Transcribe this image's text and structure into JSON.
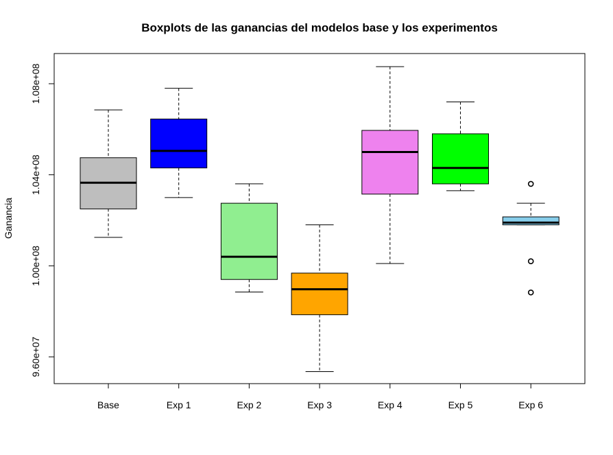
{
  "chart_data": {
    "type": "boxplot",
    "title": "Boxplots de las ganancias del modelos base y los experimentos",
    "xlabel": "",
    "ylabel": "Ganancia",
    "ylim": [
      95300000,
      108900000
    ],
    "yticks": [
      96000000,
      100000000,
      104000000,
      108000000
    ],
    "ytick_labels": [
      "9.60e+07",
      "1.00e+08",
      "1.04e+08",
      "1.08e+08"
    ],
    "categories": [
      "Base",
      "Exp 1",
      "Exp 2",
      "Exp 3",
      "Exp 4",
      "Exp 5",
      "Exp 6"
    ],
    "series": [
      {
        "name": "Base",
        "whisker_low": 101250000,
        "q1": 102500000,
        "median": 103650000,
        "q3": 104750000,
        "whisker_high": 106850000,
        "outliers": [],
        "color": "#bebebe"
      },
      {
        "name": "Exp 1",
        "whisker_low": 103000000,
        "q1": 104300000,
        "median": 105050000,
        "q3": 106450000,
        "whisker_high": 107800000,
        "outliers": [],
        "color": "#0000ff"
      },
      {
        "name": "Exp 2",
        "whisker_low": 98850000,
        "q1": 99400000,
        "median": 100400000,
        "q3": 102750000,
        "whisker_high": 103600000,
        "outliers": [],
        "color": "#90ee90"
      },
      {
        "name": "Exp 3",
        "whisker_low": 95350000,
        "q1": 97850000,
        "median": 98970000,
        "q3": 99680000,
        "whisker_high": 101800000,
        "outliers": [],
        "color": "#ffa500"
      },
      {
        "name": "Exp 4",
        "whisker_low": 100100000,
        "q1": 103150000,
        "median": 105000000,
        "q3": 105950000,
        "whisker_high": 108750000,
        "outliers": [],
        "color": "#ee82ee"
      },
      {
        "name": "Exp 5",
        "whisker_low": 103300000,
        "q1": 103600000,
        "median": 104300000,
        "q3": 105800000,
        "whisker_high": 107200000,
        "outliers": [],
        "color": "#00ff00"
      },
      {
        "name": "Exp 6",
        "whisker_low": 101800000,
        "q1": 101800000,
        "median": 101900000,
        "q3": 102150000,
        "whisker_high": 102750000,
        "outliers": [
          103600000,
          100200000,
          98830000
        ],
        "color": "#87ceeb"
      }
    ]
  }
}
